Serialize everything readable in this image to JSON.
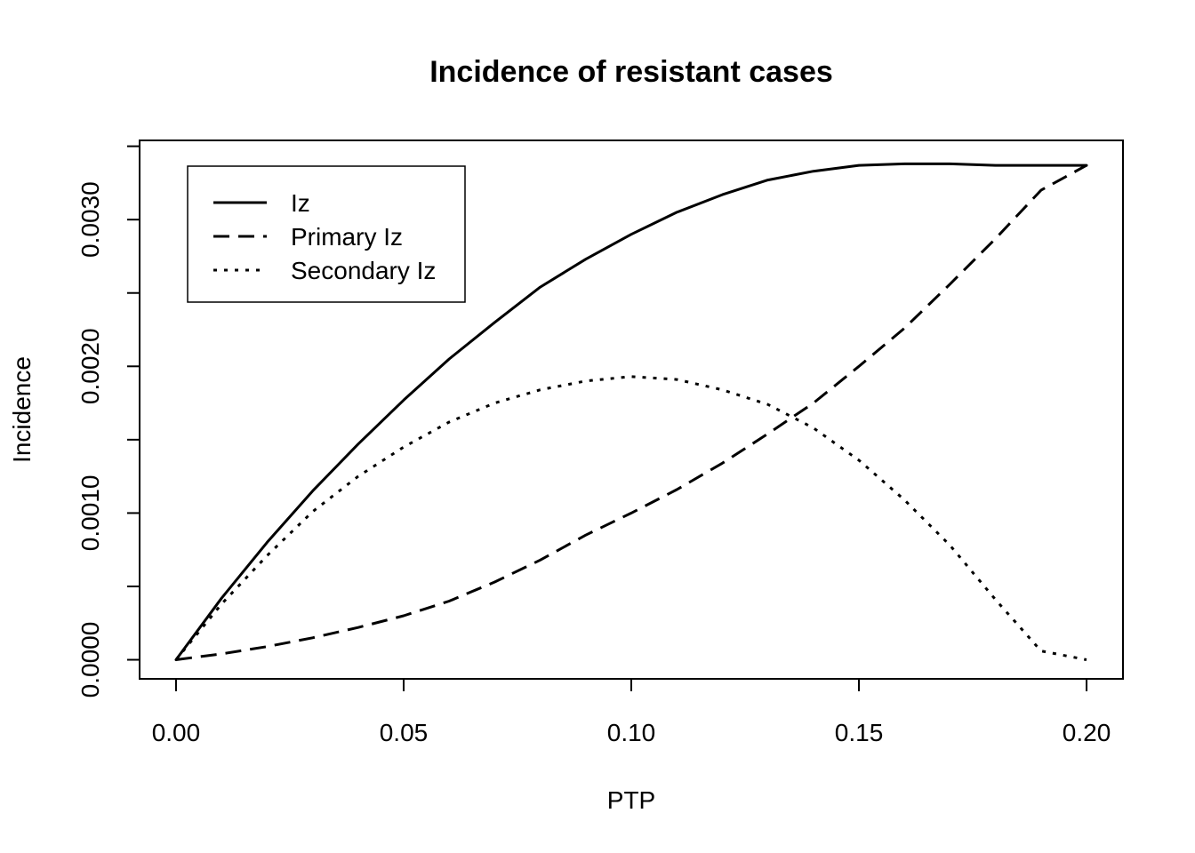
{
  "chart_data": {
    "type": "line",
    "title": "Incidence of resistant cases",
    "xlabel": "PTP",
    "ylabel": "Incidence",
    "xlim": [
      -0.008,
      0.208
    ],
    "ylim": [
      -0.00013,
      0.00354
    ],
    "x_ticks": [
      0.0,
      0.05,
      0.1,
      0.15,
      0.2
    ],
    "x_tick_labels": [
      "0.00",
      "0.05",
      "0.10",
      "0.15",
      "0.20"
    ],
    "y_ticks": [
      0.0,
      0.0005,
      0.001,
      0.0015,
      0.002,
      0.0025,
      0.003,
      0.0035
    ],
    "y_tick_labels": [
      "0.0000",
      "",
      "0.0010",
      "",
      "0.0020",
      "",
      "0.0030",
      ""
    ],
    "grid": false,
    "legend_position": "top-left",
    "x": [
      0.0,
      0.01,
      0.02,
      0.03,
      0.04,
      0.05,
      0.06,
      0.07,
      0.08,
      0.09,
      0.1,
      0.11,
      0.12,
      0.13,
      0.14,
      0.15,
      0.16,
      0.17,
      0.18,
      0.19,
      0.2
    ],
    "series": [
      {
        "name": "Iz",
        "dash": "solid",
        "values": [
          0.0,
          0.00042,
          0.0008,
          0.00115,
          0.00147,
          0.00177,
          0.00205,
          0.0023,
          0.00254,
          0.00273,
          0.0029,
          0.00305,
          0.00317,
          0.00327,
          0.00333,
          0.00337,
          0.00338,
          0.00338,
          0.00337,
          0.00337,
          0.00337
        ]
      },
      {
        "name": "Primary Iz",
        "dash": "dashed",
        "values": [
          0.0,
          4e-05,
          9e-05,
          0.00015,
          0.00022,
          0.0003,
          0.0004,
          0.00053,
          0.00068,
          0.00085,
          0.001,
          0.00116,
          0.00134,
          0.00154,
          0.00175,
          0.002,
          0.00226,
          0.00256,
          0.00287,
          0.0032,
          0.00337
        ]
      },
      {
        "name": "Secondary Iz",
        "dash": "dotted",
        "values": [
          0.0,
          0.00038,
          0.00071,
          0.00101,
          0.00125,
          0.00145,
          0.00162,
          0.00175,
          0.00184,
          0.0019,
          0.00193,
          0.00191,
          0.00184,
          0.00174,
          0.00158,
          0.00136,
          0.00109,
          0.00078,
          0.00041,
          6e-05,
          0.0
        ]
      }
    ]
  }
}
